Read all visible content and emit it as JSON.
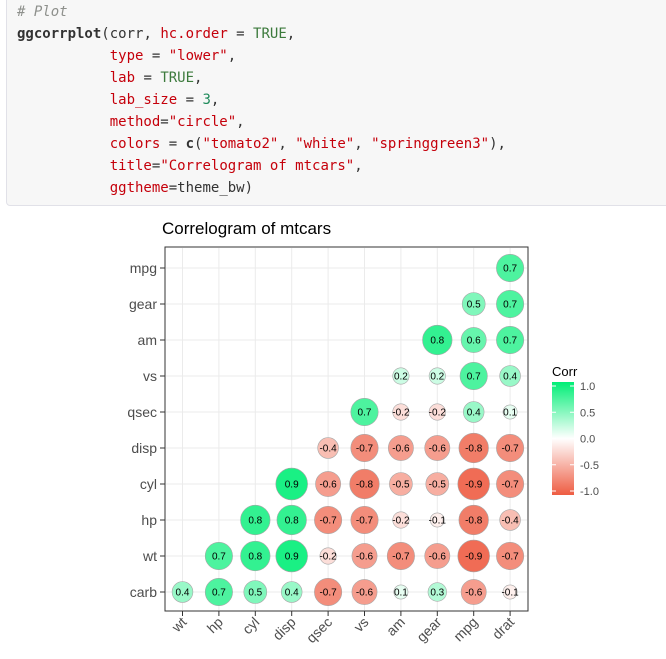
{
  "code": {
    "comment": "# Plot",
    "fn_name": "ggcorrplot",
    "arg1": "(corr, ",
    "p_hc": "hc.order",
    "eq": " = ",
    "v_hc": "TRUE",
    "comma": ",",
    "p_type": "type",
    "v_type": "\"lower\"",
    "p_lab": "lab",
    "v_lab": "TRUE",
    "p_labsize": "lab_size",
    "v_labsize": "3",
    "p_method": "method",
    "eq2": "=",
    "v_method": "\"circle\"",
    "p_colors": "colors",
    "c_fn": "c",
    "open_paren": "(",
    "v_col1": "\"tomato2\"",
    "sep": ", ",
    "v_col2": "\"white\"",
    "v_col3": "\"springgreen3\"",
    "close_paren": "),",
    "p_title": "title",
    "v_title": "\"Correlogram of mtcars\"",
    "p_theme": "ggtheme",
    "v_theme": "theme_bw)"
  },
  "chart_data": {
    "type": "heatmap",
    "title": "Correlogram of mtcars",
    "x_categories": [
      "wt",
      "hp",
      "cyl",
      "disp",
      "qsec",
      "vs",
      "am",
      "gear",
      "mpg",
      "drat"
    ],
    "y_categories": [
      "carb",
      "wt",
      "hp",
      "cyl",
      "disp",
      "qsec",
      "vs",
      "am",
      "gear",
      "mpg"
    ],
    "cells": [
      {
        "x": "wt",
        "y": "carb",
        "value": 0.4
      },
      {
        "x": "hp",
        "y": "carb",
        "value": 0.7
      },
      {
        "x": "cyl",
        "y": "carb",
        "value": 0.5
      },
      {
        "x": "disp",
        "y": "carb",
        "value": 0.4
      },
      {
        "x": "qsec",
        "y": "carb",
        "value": -0.7
      },
      {
        "x": "vs",
        "y": "carb",
        "value": -0.6
      },
      {
        "x": "am",
        "y": "carb",
        "value": 0.1
      },
      {
        "x": "gear",
        "y": "carb",
        "value": 0.3
      },
      {
        "x": "mpg",
        "y": "carb",
        "value": -0.6
      },
      {
        "x": "drat",
        "y": "carb",
        "value": -0.1
      },
      {
        "x": "hp",
        "y": "wt",
        "value": 0.7
      },
      {
        "x": "cyl",
        "y": "wt",
        "value": 0.8
      },
      {
        "x": "disp",
        "y": "wt",
        "value": 0.9
      },
      {
        "x": "qsec",
        "y": "wt",
        "value": -0.2
      },
      {
        "x": "vs",
        "y": "wt",
        "value": -0.6
      },
      {
        "x": "am",
        "y": "wt",
        "value": -0.7
      },
      {
        "x": "gear",
        "y": "wt",
        "value": -0.6
      },
      {
        "x": "mpg",
        "y": "wt",
        "value": -0.9
      },
      {
        "x": "drat",
        "y": "wt",
        "value": -0.7
      },
      {
        "x": "cyl",
        "y": "hp",
        "value": 0.8
      },
      {
        "x": "disp",
        "y": "hp",
        "value": 0.8
      },
      {
        "x": "qsec",
        "y": "hp",
        "value": -0.7
      },
      {
        "x": "vs",
        "y": "hp",
        "value": -0.7
      },
      {
        "x": "am",
        "y": "hp",
        "value": -0.2
      },
      {
        "x": "gear",
        "y": "hp",
        "value": -0.1
      },
      {
        "x": "mpg",
        "y": "hp",
        "value": -0.8
      },
      {
        "x": "drat",
        "y": "hp",
        "value": -0.4
      },
      {
        "x": "disp",
        "y": "cyl",
        "value": 0.9
      },
      {
        "x": "qsec",
        "y": "cyl",
        "value": -0.6
      },
      {
        "x": "vs",
        "y": "cyl",
        "value": -0.8
      },
      {
        "x": "am",
        "y": "cyl",
        "value": -0.5
      },
      {
        "x": "gear",
        "y": "cyl",
        "value": -0.5
      },
      {
        "x": "mpg",
        "y": "cyl",
        "value": -0.9
      },
      {
        "x": "drat",
        "y": "cyl",
        "value": -0.7
      },
      {
        "x": "qsec",
        "y": "disp",
        "value": -0.4
      },
      {
        "x": "vs",
        "y": "disp",
        "value": -0.7
      },
      {
        "x": "am",
        "y": "disp",
        "value": -0.6
      },
      {
        "x": "gear",
        "y": "disp",
        "value": -0.6
      },
      {
        "x": "mpg",
        "y": "disp",
        "value": -0.8
      },
      {
        "x": "drat",
        "y": "disp",
        "value": -0.7
      },
      {
        "x": "vs",
        "y": "qsec",
        "value": 0.7
      },
      {
        "x": "am",
        "y": "qsec",
        "value": -0.2
      },
      {
        "x": "gear",
        "y": "qsec",
        "value": -0.2
      },
      {
        "x": "mpg",
        "y": "qsec",
        "value": 0.4
      },
      {
        "x": "drat",
        "y": "qsec",
        "value": 0.1
      },
      {
        "x": "am",
        "y": "vs",
        "value": 0.2
      },
      {
        "x": "gear",
        "y": "vs",
        "value": 0.2
      },
      {
        "x": "mpg",
        "y": "vs",
        "value": 0.7
      },
      {
        "x": "drat",
        "y": "vs",
        "value": 0.4
      },
      {
        "x": "gear",
        "y": "am",
        "value": 0.8
      },
      {
        "x": "mpg",
        "y": "am",
        "value": 0.6
      },
      {
        "x": "drat",
        "y": "am",
        "value": 0.7
      },
      {
        "x": "mpg",
        "y": "gear",
        "value": 0.5
      },
      {
        "x": "drat",
        "y": "gear",
        "value": 0.7
      },
      {
        "x": "drat",
        "y": "mpg",
        "value": 0.7
      }
    ],
    "legend": {
      "title": "Corr",
      "ticks": [
        1.0,
        0.5,
        0.0,
        -0.5,
        -1.0
      ],
      "tick_labels": [
        "1.0",
        "0.5",
        "0.0",
        "-0.5",
        "-1.0"
      ],
      "position": "right"
    },
    "colors": {
      "low": "#ee5c42",
      "mid": "#ffffff",
      "high": "#00ee76"
    },
    "value_range": [
      -1,
      1
    ],
    "grid": true
  }
}
